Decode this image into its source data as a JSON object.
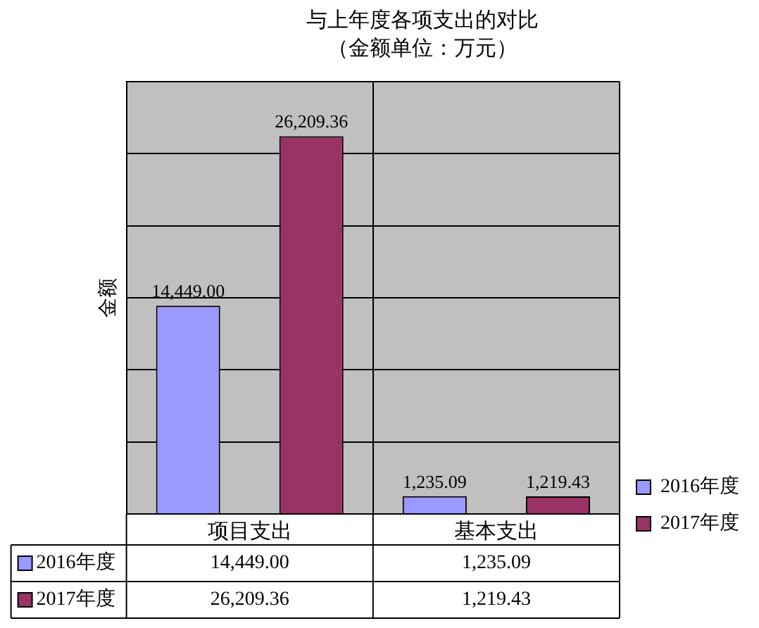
{
  "chart_data": {
    "type": "bar",
    "title": "与上年度各项支出的对比",
    "subtitle": "（金额单位：万元）",
    "ylabel": "金额",
    "categories": [
      "项目支出",
      "基本支出"
    ],
    "series": [
      {
        "name": "2016年度",
        "color": "#9999ff",
        "values": [
          14449.0,
          1235.09
        ],
        "value_labels": [
          "14,449.00",
          "1,235.09"
        ]
      },
      {
        "name": "2017年度",
        "color": "#993366",
        "values": [
          26209.36,
          1219.43
        ],
        "value_labels": [
          "26,209.36",
          "1,219.43"
        ]
      }
    ],
    "ylim": [
      0,
      30000
    ],
    "grid": true,
    "legend": "bottom right"
  }
}
